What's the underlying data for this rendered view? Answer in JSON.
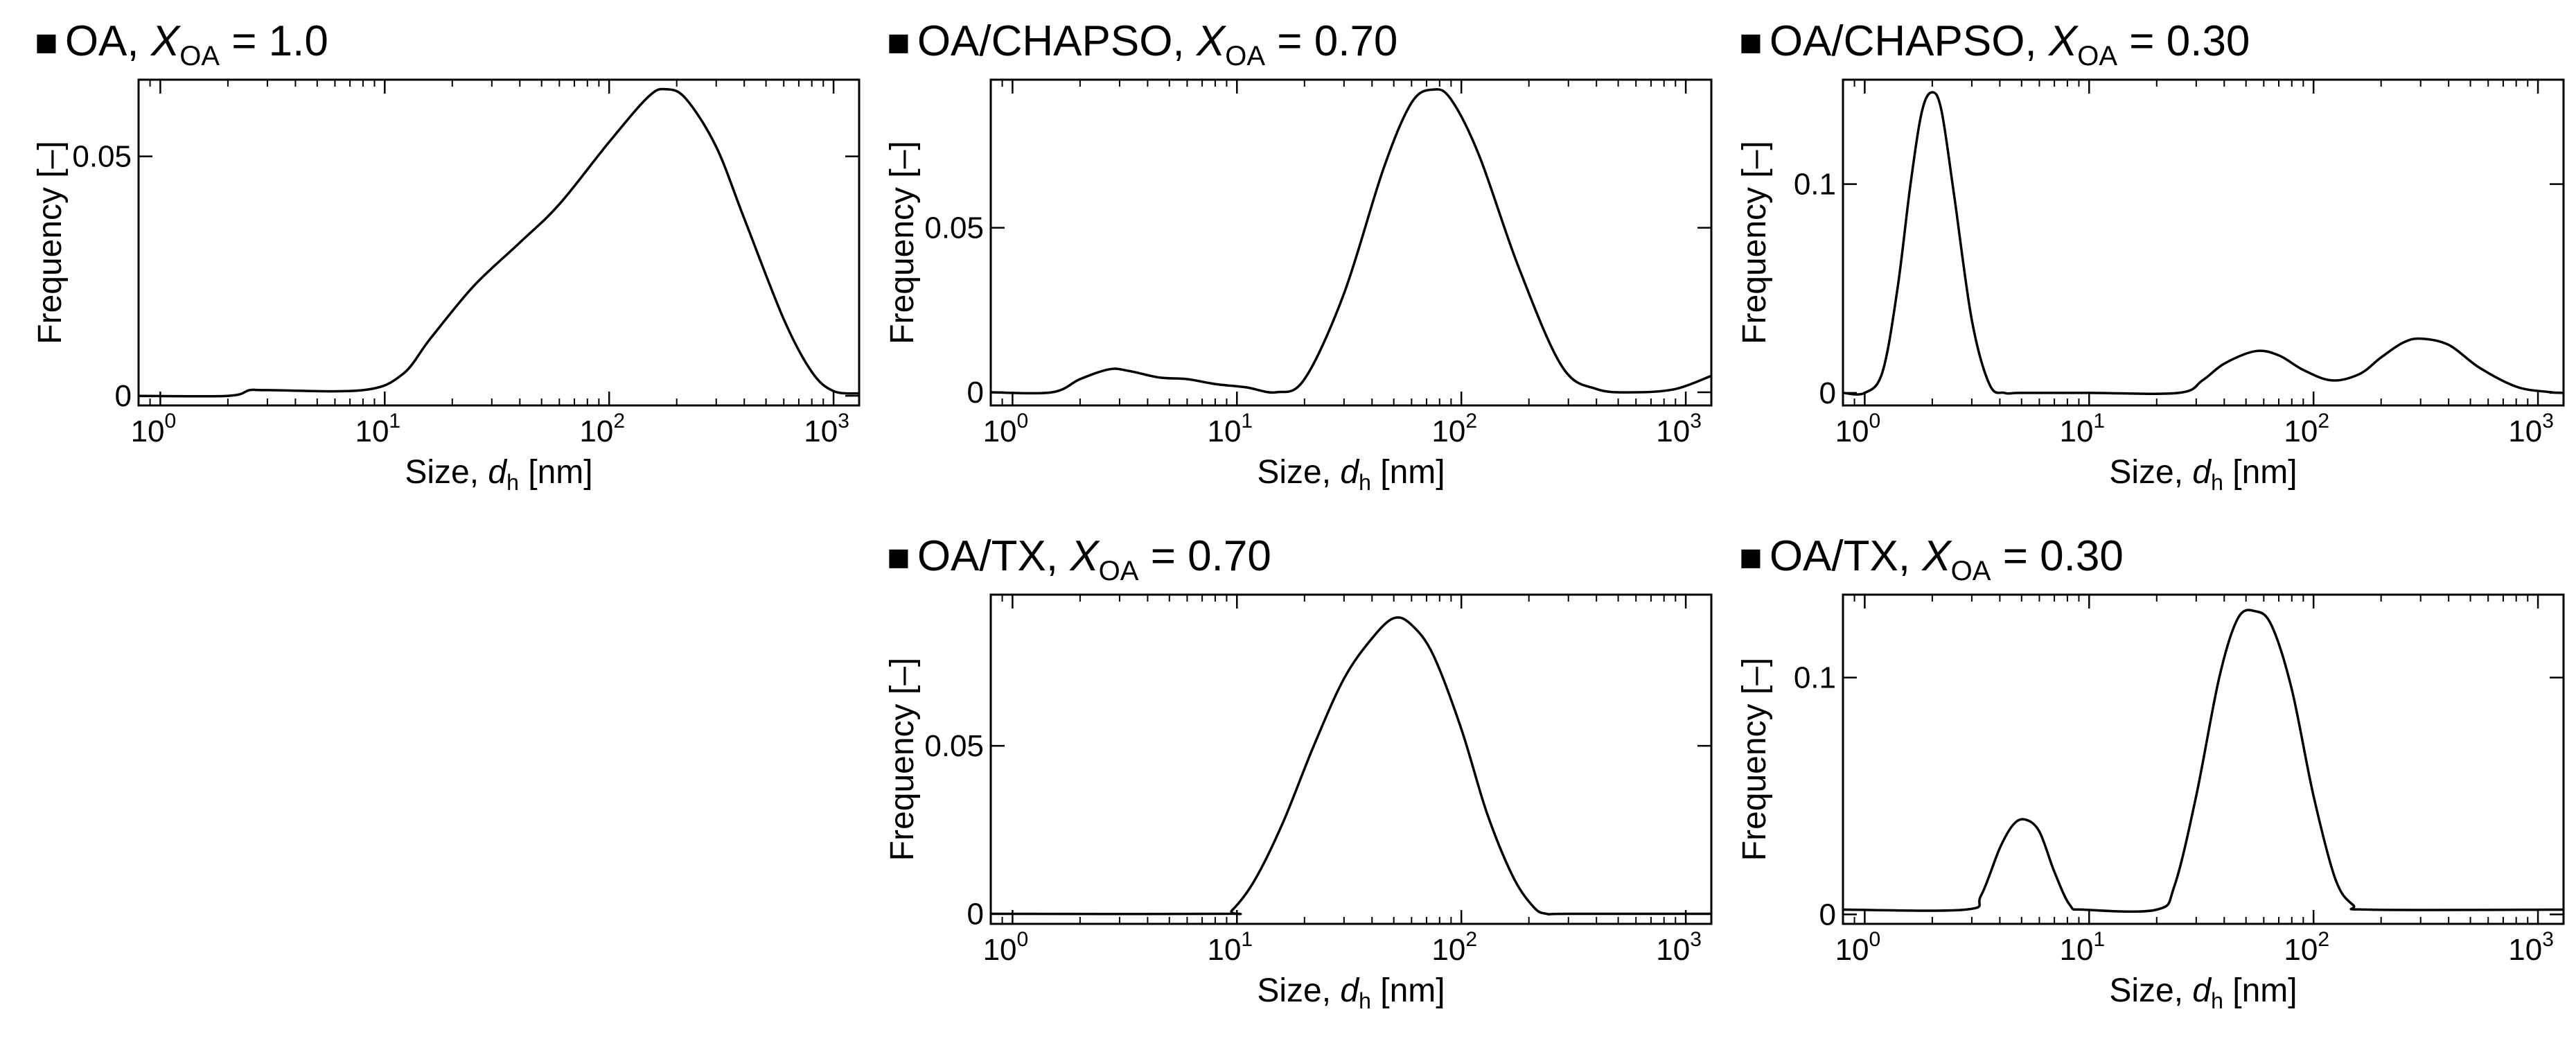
{
  "figure": {
    "panel_marker": "■"
  },
  "chart_data": [
    {
      "id": "oa-1-0",
      "type": "line",
      "title": {
        "prefix": "OA, ",
        "var": "X",
        "sub": "OA",
        "suffix": " = 1.0"
      },
      "xlabel": {
        "prefix": "Size, ",
        "var": "d",
        "sub": "h",
        "suffix": " [nm]"
      },
      "ylabel": "Frequency [–]",
      "xscale": "log",
      "xlim": [
        0.8,
        1300
      ],
      "ylim": [
        -0.002,
        0.066
      ],
      "xticks": [
        {
          "base": "10",
          "exp": "0",
          "value": 1
        },
        {
          "base": "10",
          "exp": "1",
          "value": 10
        },
        {
          "base": "10",
          "exp": "2",
          "value": 100
        },
        {
          "base": "10",
          "exp": "3",
          "value": 1000
        }
      ],
      "yticks": [
        {
          "label": "0",
          "value": 0
        },
        {
          "label": "0.05",
          "value": 0.05
        }
      ],
      "grid": false,
      "series": [
        {
          "name": "OA, X_OA = 1.0",
          "x": [
            0.8,
            2.0,
            2.5,
            3,
            8,
            12,
            16,
            25,
            40,
            60,
            100,
            150,
            180,
            220,
            300,
            400,
            600,
            800,
            1000,
            1300
          ],
          "y": [
            0,
            0,
            0.0012,
            0.0012,
            0.0012,
            0.0045,
            0.012,
            0.023,
            0.032,
            0.04,
            0.053,
            0.0625,
            0.064,
            0.062,
            0.052,
            0.037,
            0.016,
            0.005,
            0.001,
            0.0005
          ]
        }
      ]
    },
    {
      "id": "chapso-0-70",
      "type": "line",
      "title": {
        "prefix": "OA/CHAPSO, ",
        "var": "X",
        "sub": "OA",
        "suffix": " = 0.70"
      },
      "xlabel": {
        "prefix": "Size, ",
        "var": "d",
        "sub": "h",
        "suffix": " [nm]"
      },
      "ylabel": "Frequency [–]",
      "xscale": "log",
      "xlim": [
        0.8,
        1300
      ],
      "ylim": [
        -0.004,
        0.095
      ],
      "xticks": [
        {
          "base": "10",
          "exp": "0",
          "value": 1
        },
        {
          "base": "10",
          "exp": "1",
          "value": 10
        },
        {
          "base": "10",
          "exp": "2",
          "value": 100
        },
        {
          "base": "10",
          "exp": "3",
          "value": 1000
        }
      ],
      "yticks": [
        {
          "label": "0",
          "value": 0
        },
        {
          "label": "0.05",
          "value": 0.05
        }
      ],
      "grid": false,
      "series": [
        {
          "name": "OA/CHAPSO, X_OA = 0.70",
          "x": [
            0.8,
            1.5,
            2.0,
            2.7,
            3.3,
            4.5,
            6,
            8,
            11,
            15,
            20,
            30,
            45,
            60,
            75,
            90,
            120,
            180,
            280,
            400,
            600,
            900,
            1300
          ],
          "y": [
            0,
            0,
            0.004,
            0.007,
            0.0065,
            0.0045,
            0.004,
            0.0025,
            0.0015,
            0,
            0.004,
            0.03,
            0.068,
            0.088,
            0.092,
            0.089,
            0.072,
            0.038,
            0.008,
            0.001,
            0,
            0.001,
            0.005
          ]
        }
      ]
    },
    {
      "id": "chapso-0-30",
      "type": "line",
      "title": {
        "prefix": "OA/CHAPSO, ",
        "var": "X",
        "sub": "OA",
        "suffix": " = 0.30"
      },
      "xlabel": {
        "prefix": "Size, ",
        "var": "d",
        "sub": "h",
        "suffix": " [nm]"
      },
      "ylabel": "Frequency [–]",
      "xscale": "log",
      "xlim": [
        0.8,
        1300
      ],
      "ylim": [
        -0.006,
        0.15
      ],
      "xticks": [
        {
          "base": "10",
          "exp": "0",
          "value": 1
        },
        {
          "base": "10",
          "exp": "1",
          "value": 10
        },
        {
          "base": "10",
          "exp": "2",
          "value": 100
        },
        {
          "base": "10",
          "exp": "3",
          "value": 1000
        }
      ],
      "yticks": [
        {
          "label": "0",
          "value": 0
        },
        {
          "label": "0.1",
          "value": 0.1
        }
      ],
      "grid": false,
      "series": [
        {
          "name": "OA/CHAPSO, X_OA = 0.30",
          "x": [
            0.8,
            1.0,
            1.2,
            1.4,
            1.6,
            1.8,
            2.0,
            2.2,
            2.5,
            3.0,
            3.6,
            4.2,
            5,
            10,
            25,
            32,
            40,
            55,
            70,
            90,
            120,
            160,
            200,
            250,
            300,
            400,
            550,
            800,
            1100,
            1300
          ],
          "y": [
            0,
            0,
            0.01,
            0.05,
            0.1,
            0.135,
            0.144,
            0.135,
            0.095,
            0.035,
            0.004,
            0,
            0,
            0,
            0,
            0.006,
            0.014,
            0.02,
            0.018,
            0.011,
            0.006,
            0.009,
            0.017,
            0.024,
            0.026,
            0.023,
            0.012,
            0.003,
            0.0005,
            0
          ]
        }
      ]
    },
    {
      "id": "tx-0-70",
      "type": "line",
      "title": {
        "prefix": "OA/TX, ",
        "var": "X",
        "sub": "OA",
        "suffix": " = 0.70"
      },
      "xlabel": {
        "prefix": "Size, ",
        "var": "d",
        "sub": "h",
        "suffix": " [nm]"
      },
      "ylabel": "Frequency [–]",
      "xscale": "log",
      "xlim": [
        0.8,
        1300
      ],
      "ylim": [
        -0.003,
        0.095
      ],
      "xticks": [
        {
          "base": "10",
          "exp": "0",
          "value": 1
        },
        {
          "base": "10",
          "exp": "1",
          "value": 10
        },
        {
          "base": "10",
          "exp": "2",
          "value": 100
        },
        {
          "base": "10",
          "exp": "3",
          "value": 1000
        }
      ],
      "yticks": [
        {
          "label": "0",
          "value": 0
        },
        {
          "label": "0.05",
          "value": 0.05
        }
      ],
      "grid": false,
      "series": [
        {
          "name": "OA/TX, X_OA = 0.70",
          "x": [
            0.8,
            8.5,
            9.5,
            12,
            16,
            22,
            30,
            40,
            50,
            60,
            75,
            100,
            130,
            170,
            210,
            240,
            300,
            1300
          ],
          "y": [
            0,
            0,
            0.001,
            0.01,
            0.027,
            0.05,
            0.07,
            0.082,
            0.088,
            0.086,
            0.077,
            0.055,
            0.03,
            0.011,
            0.002,
            0,
            0,
            0
          ]
        }
      ]
    },
    {
      "id": "tx-0-30",
      "type": "line",
      "title": {
        "prefix": "OA/TX, ",
        "var": "X",
        "sub": "OA",
        "suffix": " = 0.30"
      },
      "xlabel": {
        "prefix": "Size, ",
        "var": "d",
        "sub": "h",
        "suffix": " [nm]"
      },
      "ylabel": "Frequency [–]",
      "xscale": "log",
      "xlim": [
        0.8,
        1300
      ],
      "ylim": [
        -0.004,
        0.135
      ],
      "xticks": [
        {
          "base": "10",
          "exp": "0",
          "value": 1
        },
        {
          "base": "10",
          "exp": "1",
          "value": 10
        },
        {
          "base": "10",
          "exp": "2",
          "value": 100
        },
        {
          "base": "10",
          "exp": "3",
          "value": 1000
        }
      ],
      "yticks": [
        {
          "label": "0",
          "value": 0
        },
        {
          "label": "0.1",
          "value": 0.1
        }
      ],
      "grid": false,
      "series": [
        {
          "name": "OA/TX, X_OA = 0.30",
          "x": [
            0.8,
            2.8,
            3.3,
            4.0,
            4.6,
            5.2,
            6.0,
            7.0,
            8.2,
            9.5,
            20,
            24,
            30,
            38,
            46,
            55,
            65,
            80,
            100,
            125,
            150,
            180,
            1300
          ],
          "y": [
            0.002,
            0.002,
            0.008,
            0.028,
            0.038,
            0.04,
            0.035,
            0.018,
            0.004,
            0.002,
            0.002,
            0.012,
            0.05,
            0.1,
            0.125,
            0.128,
            0.122,
            0.095,
            0.05,
            0.015,
            0.004,
            0.002,
            0.002
          ]
        }
      ]
    }
  ]
}
